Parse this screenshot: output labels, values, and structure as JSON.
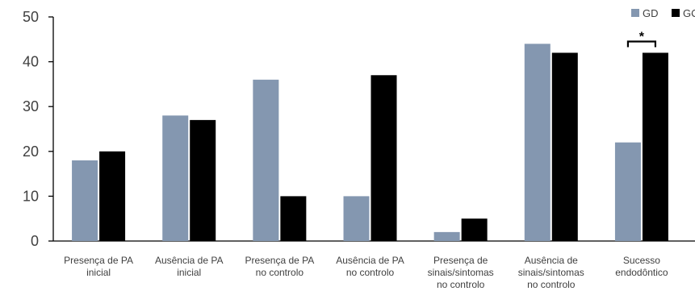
{
  "chart_data": {
    "type": "bar",
    "categories": [
      [
        "Presença de PA",
        "inicial"
      ],
      [
        "Ausência de PA",
        "inicial"
      ],
      [
        "Presença de PA",
        "no controlo"
      ],
      [
        "Ausência de PA",
        "no controlo"
      ],
      [
        "Presença de",
        "sinais/sintomas",
        "no controlo"
      ],
      [
        "Ausência de",
        "sinais/sintomas",
        "no controlo"
      ],
      [
        "Sucesso",
        "endodôntico"
      ]
    ],
    "series": [
      {
        "name": "GD",
        "color": "#8497b0",
        "values": [
          18,
          28,
          36,
          10,
          2,
          44,
          22
        ]
      },
      {
        "name": "GC",
        "color": "#000000",
        "values": [
          20,
          27,
          10,
          37,
          5,
          42,
          42
        ]
      }
    ],
    "ylim": [
      0,
      50
    ],
    "yticks": [
      0,
      10,
      20,
      30,
      40,
      50
    ],
    "grid": false,
    "legend": "top-right",
    "annotations": [
      {
        "text": "*",
        "category_index": 6
      }
    ]
  }
}
